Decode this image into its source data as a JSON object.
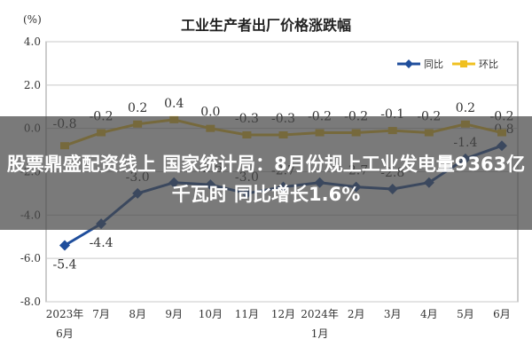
{
  "colors": {
    "yoy": "#1f4e9c",
    "mom": "#f0c020",
    "grid": "#c9c9c9",
    "plot_bg": "#ffffff",
    "banner": "#464646"
  },
  "headline": "股票鼎盛配资线上 国家统计局：8月份规上工业发电量9363亿千瓦时 同比增长1.6%",
  "chart_data": {
    "type": "line",
    "title": "工业生产者出厂价格涨跌幅",
    "unit": "(%)",
    "categories": [
      "2023年6月",
      "7月",
      "8月",
      "9月",
      "10月",
      "11月",
      "12月",
      "2024年1月",
      "2月",
      "3月",
      "4月",
      "5月",
      "6月"
    ],
    "category_ticks": [
      {
        "line1": "2023年",
        "line2": "6月"
      },
      {
        "line1": "7月",
        "line2": ""
      },
      {
        "line1": "8月",
        "line2": ""
      },
      {
        "line1": "9月",
        "line2": ""
      },
      {
        "line1": "10月",
        "line2": ""
      },
      {
        "line1": "11月",
        "line2": ""
      },
      {
        "line1": "12月",
        "line2": ""
      },
      {
        "line1": "2024年",
        "line2": "1月"
      },
      {
        "line1": "2月",
        "line2": ""
      },
      {
        "line1": "3月",
        "line2": ""
      },
      {
        "line1": "4月",
        "line2": ""
      },
      {
        "line1": "5月",
        "line2": ""
      },
      {
        "line1": "6月",
        "line2": ""
      }
    ],
    "yticks": [
      "4.0",
      "2.0",
      "0.0",
      "-2.0",
      "-4.0",
      "-6.0",
      "-8.0"
    ],
    "ylim": [
      -8,
      4
    ],
    "grid": true,
    "legend_position": "top-right",
    "series": [
      {
        "name": "同比",
        "color": "#1f4e9c",
        "values": [
          -5.4,
          -4.4,
          -3.0,
          -2.5,
          -2.6,
          -3.0,
          -2.7,
          -2.5,
          -2.7,
          -2.8,
          -2.5,
          -1.4,
          -0.8
        ],
        "labels": [
          "-5.4",
          "-4.4",
          "-3.0",
          "",
          "-2.6",
          "-3.0",
          "-2.7",
          "",
          "-2.7",
          "-2.8",
          "",
          "-1.4",
          "-0.8"
        ]
      },
      {
        "name": "环比",
        "color": "#f0c020",
        "values": [
          -0.8,
          -0.2,
          0.2,
          0.4,
          0.0,
          -0.3,
          -0.3,
          -0.2,
          -0.2,
          -0.1,
          -0.2,
          0.2,
          -0.2
        ],
        "labels": [
          "-0.8",
          "-0.2",
          "0.2",
          "0.4",
          "0.0",
          "-0.3",
          "-0.3",
          "-0.2",
          "-0.2",
          "-0.1",
          "-0.2",
          "0.2",
          "-0.2"
        ]
      }
    ]
  }
}
